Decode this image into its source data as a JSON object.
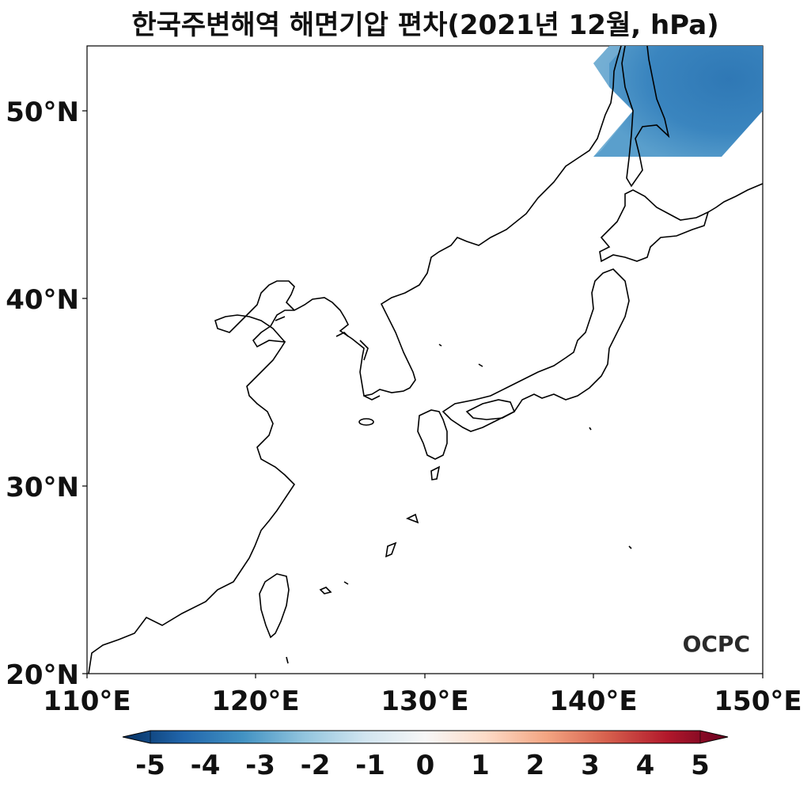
{
  "title": "한국주변해역 해면기압 편차(2021년 12월, hPa)",
  "map": {
    "lat_range": [
      20,
      53.5
    ],
    "lon_range": [
      110,
      150
    ],
    "lat_ticks": [
      "50°N",
      "40°N",
      "30°N",
      "20°N"
    ],
    "lon_ticks": [
      "110°E",
      "120°E",
      "130°E",
      "140°E",
      "150°E"
    ],
    "anomaly_region_color": "#3a85bf",
    "anomaly_region_light": "#8dbedb"
  },
  "colorbar": {
    "ticks": [
      "-5",
      "-4",
      "-3",
      "-2",
      "-1",
      "0",
      "1",
      "2",
      "3",
      "4",
      "5"
    ],
    "min_color": "#053061",
    "max_color": "#67001f"
  },
  "logo": "OCPC"
}
